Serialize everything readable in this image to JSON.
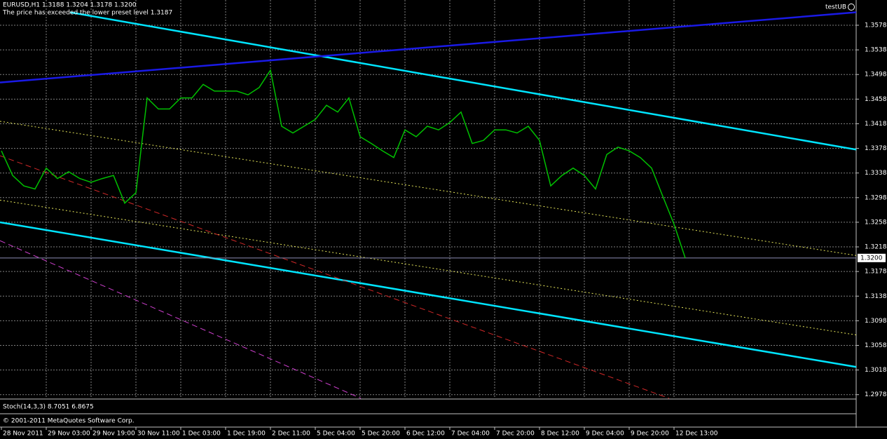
{
  "chart_data": {
    "type": "line",
    "title": "EURUSD,H1  1.3188 1.3204 1.3178 1.3200",
    "subtitle": "The price has exceeded the lower preset level 1.3187",
    "expert": "testUB",
    "color": "#00c000",
    "x": [
      0,
      4,
      8,
      12,
      16,
      20,
      24,
      28,
      32,
      36,
      40,
      44,
      48,
      52,
      56,
      60,
      64,
      68,
      72,
      76,
      80,
      84,
      88,
      92,
      96,
      100,
      104,
      108,
      112,
      116,
      120,
      124,
      128,
      132,
      136,
      140,
      144,
      148,
      152,
      156,
      160,
      164,
      168,
      172,
      176,
      180,
      184,
      188,
      192,
      196,
      200,
      204,
      208,
      212,
      216,
      220,
      224,
      228,
      232,
      236,
      240,
      244
    ],
    "values": [
      1.3374,
      1.3334,
      1.3317,
      1.3312,
      1.3346,
      1.3329,
      1.334,
      1.3329,
      1.3323,
      1.3329,
      1.3334,
      1.3289,
      1.3306,
      1.346,
      1.3442,
      1.3442,
      1.346,
      1.346,
      1.3482,
      1.3471,
      1.3471,
      1.3471,
      1.3465,
      1.3477,
      1.3505,
      1.3414,
      1.3403,
      1.3414,
      1.3425,
      1.3448,
      1.3437,
      1.346,
      1.3397,
      1.3386,
      1.3374,
      1.3363,
      1.3408,
      1.3397,
      1.3414,
      1.3408,
      1.342,
      1.3437,
      1.3386,
      1.3391,
      1.3408,
      1.3408,
      1.3403,
      1.3414,
      1.3391,
      1.3317,
      1.3334,
      1.3346,
      1.3334,
      1.3312,
      1.3368,
      1.338,
      1.3374,
      1.3363,
      1.3346,
      1.33,
      1.3255,
      1.32
    ],
    "xlim": [
      -0.5,
      305
    ],
    "ylim": [
      1.2972,
      1.3619
    ],
    "yticks": [
      1.3578,
      1.3538,
      1.3498,
      1.3458,
      1.3418,
      1.3378,
      1.3338,
      1.3298,
      1.3258,
      1.3218,
      1.3178,
      1.3138,
      1.3098,
      1.3058,
      1.3018,
      1.2978
    ],
    "xticks": [
      {
        "value": 0,
        "label": "28 Nov 2011"
      },
      {
        "value": 16,
        "label": "29 Nov 03:00"
      },
      {
        "value": 32,
        "label": "29 Nov 19:00"
      },
      {
        "value": 48,
        "label": "30 Nov 11:00"
      },
      {
        "value": 64,
        "label": "1 Dec 03:00"
      },
      {
        "value": 80,
        "label": "1 Dec 19:00"
      },
      {
        "value": 96,
        "label": "2 Dec 11:00"
      },
      {
        "value": 112,
        "label": "5 Dec 04:00"
      },
      {
        "value": 128,
        "label": "5 Dec 20:00"
      },
      {
        "value": 144,
        "label": "6 Dec 12:00"
      },
      {
        "value": 160,
        "label": "7 Dec 04:00"
      },
      {
        "value": 176,
        "label": "7 Dec 20:00"
      },
      {
        "value": 192,
        "label": "8 Dec 12:00"
      },
      {
        "value": 208,
        "label": "9 Dec 04:00"
      },
      {
        "value": 224,
        "label": "9 Dec 20:00"
      },
      {
        "value": 240,
        "label": "12 Dec 13:00"
      }
    ],
    "grid": true,
    "current_price": {
      "value": 1.32,
      "label": "1.3200"
    },
    "lines": [
      {
        "color": "#00e5ff",
        "style": "solid",
        "x": [
          24.5,
          305
        ],
        "values": [
          1.3599,
          1.3376
        ]
      },
      {
        "color": "#00e5ff",
        "style": "solid",
        "x": [
          -0.5,
          305
        ],
        "values": [
          1.3258,
          1.3023
        ]
      },
      {
        "color": "#1a1ae6",
        "style": "solid",
        "x": [
          -0.5,
          305
        ],
        "values": [
          1.3485,
          1.3599
        ]
      },
      {
        "color": "#e6e65a",
        "style": "dotted",
        "x": [
          -0.5,
          305
        ],
        "values": [
          1.3422,
          1.3204
        ]
      },
      {
        "color": "#e6e65a",
        "style": "dotted",
        "x": [
          -0.5,
          305
        ],
        "values": [
          1.3294,
          1.3075
        ]
      },
      {
        "color": "#d02828",
        "style": "dashed",
        "x": [
          -0.5,
          238.25
        ],
        "values": [
          1.3366,
          1.2972
        ]
      },
      {
        "color": "#d040d0",
        "style": "dashed",
        "x": [
          -0.5,
          128.25
        ],
        "values": [
          1.3228,
          1.2972
        ]
      }
    ],
    "indicators": [
      "Stoch(14,3,3) 8.7051 6.8675",
      "© 2001-2011 MetaQuotes Software Corp."
    ]
  }
}
